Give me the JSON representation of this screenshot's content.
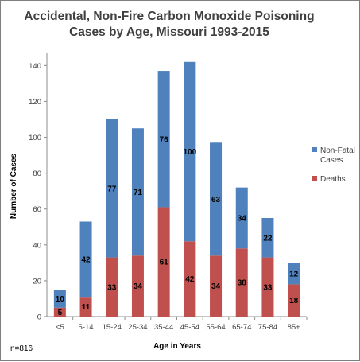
{
  "chart_data": {
    "type": "bar",
    "stacked": true,
    "title": "Accidental, Non-Fire Carbon Monoxide Poisoning Cases by Age, Missouri 1993-2015",
    "title_lines": [
      "Accidental, Non-Fire Carbon Monoxide Poisoning",
      "Cases by Age, Missouri 1993-2015"
    ],
    "xlabel": "Age in Years",
    "ylabel": "Number of Cases",
    "ylim": [
      0,
      140
    ],
    "yticks": [
      0,
      20,
      40,
      60,
      80,
      100,
      120,
      140
    ],
    "grid": false,
    "legend_position": "right",
    "categories": [
      "<5",
      "5-14",
      "15-24",
      "25-34",
      "35-44",
      "45-54",
      "55-64",
      "65-74",
      "75-84",
      "85+"
    ],
    "series": [
      {
        "name": "Deaths",
        "color": "#c0504d",
        "values": [
          5,
          11,
          33,
          34,
          61,
          42,
          34,
          38,
          33,
          18
        ]
      },
      {
        "name": "Non-Fatal Cases",
        "legend_lines": [
          "Non-Fatal",
          "Cases"
        ],
        "color": "#4f81bd",
        "values": [
          10,
          42,
          77,
          71,
          76,
          100,
          63,
          34,
          22,
          12
        ]
      }
    ],
    "note": "n=816"
  }
}
